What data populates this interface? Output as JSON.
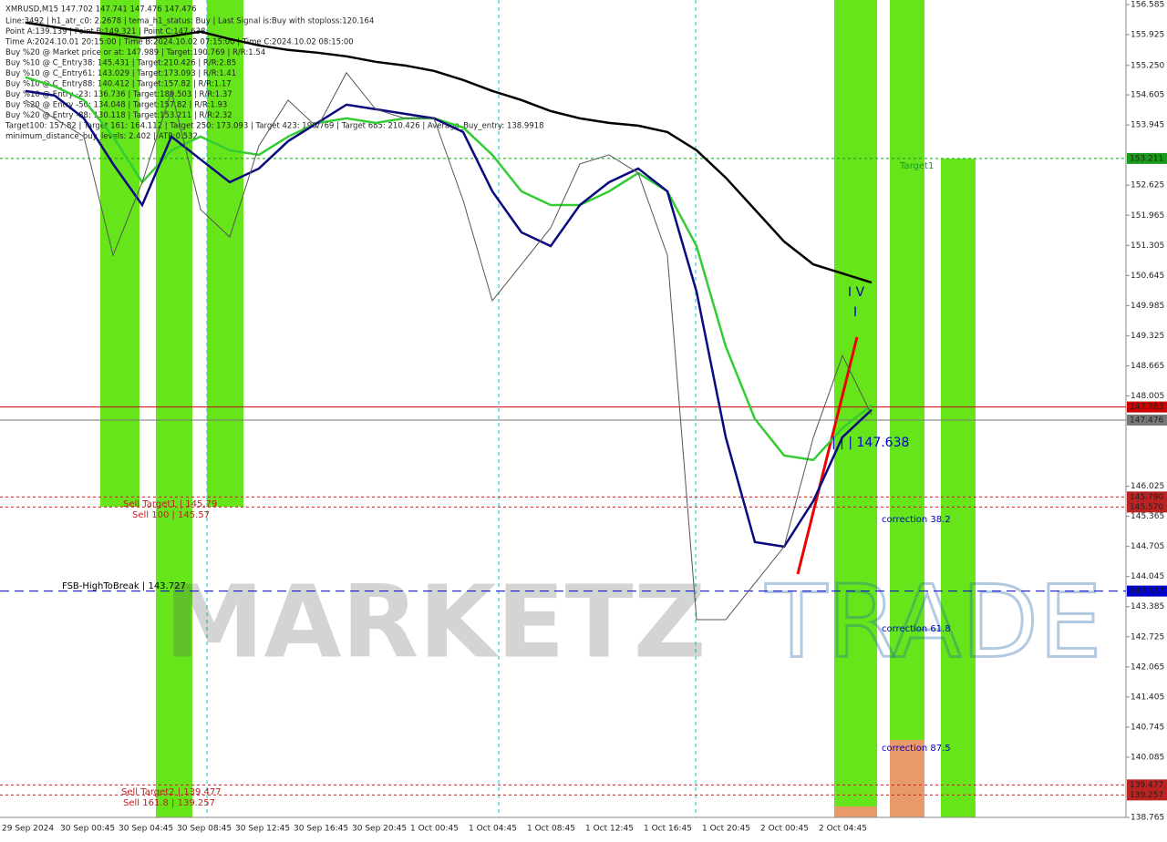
{
  "chart_data": {
    "type": "line",
    "title": "XMRUSD,M15  147.702 147.741 147.476 147.476",
    "info_lines": [
      "Line:3492 | h1_atr_c0: 2.2678 | tema_h1_status: Buy | Last Signal is:Buy with stoploss:120.164",
      "Point A:139.139 | Point B:149.321 | Point C:147.638",
      "Time A:2024.10.01 20:15:00 | Time B:2024.10.02 07:15:00 | Time C:2024.10.02 08:15:00",
      "Buy %20 @ Market price or at: 147.989 | Target:190.769 | R/R:1.54",
      "Buy %10 @ C_Entry38: 145.431 | Target:210.426 | R/R:2.85",
      "Buy %10 @ C_Entry61: 143.029 | Target:173.093 | R/R:1.41",
      "Buy %10 @ C_Entry88: 140.412 | Target:157.82 | R/R:1.17",
      "Buy %10 @ Entry -23: 136.736 | Target:189.503 | R/R:1.37",
      "Buy %20 @ Entry -50: 134.048 | Target:157.82 | R/R:1.93",
      "Buy %20 @ Entry -88: 130.118 | Target:153.211 | R/R:2.32",
      "Target100: 157.82 | Target 161: 164.112 | Target 250: 173.093 | Target 423: 190.769 | Target 685: 210.426 | Average_Buy_entry: 138.9918",
      "minimum_distance_buy_levels: 2.402 | ATR:0.532"
    ],
    "categories": [
      "29 Sep 2024",
      null,
      "30 Sep 00:45",
      null,
      "30 Sep 04:45",
      null,
      "30 Sep 08:45",
      null,
      "30 Sep 12:45",
      null,
      "30 Sep 16:45",
      null,
      "30 Sep 20:45",
      null,
      "1 Oct 00:45",
      null,
      "1 Oct 04:45",
      null,
      "1 Oct 08:45",
      null,
      "1 Oct 12:45",
      null,
      "1 Oct 16:45",
      null,
      "1 Oct 20:45",
      null,
      "2 Oct 00:45",
      null,
      "2 Oct 04:45",
      null
    ],
    "series": [
      {
        "color": "#000000",
        "width": 2.5,
        "values": [
          156.19,
          156.09,
          155.99,
          155.93,
          155.85,
          155.89,
          155.99,
          155.83,
          155.69,
          155.59,
          155.53,
          155.45,
          155.33,
          155.25,
          155.13,
          154.93,
          154.69,
          154.49,
          154.25,
          154.09,
          153.99,
          153.93,
          153.79,
          153.39,
          152.79,
          152.09,
          151.39,
          150.89,
          150.69,
          150.49
        ]
      },
      {
        "color": "#33cc33",
        "width": 2.5,
        "values": [
          154.99,
          154.79,
          154.49,
          153.69,
          152.69,
          153.39,
          153.69,
          153.39,
          153.29,
          153.69,
          153.99,
          154.09,
          153.99,
          154.09,
          154.09,
          153.89,
          153.29,
          152.49,
          152.19,
          152.19,
          152.49,
          152.89,
          152.49,
          151.29,
          149.09,
          147.5,
          146.7,
          146.6,
          147.3,
          147.8
        ]
      },
      {
        "color": "#0a0a80",
        "width": 2.5,
        "values": [
          154.69,
          154.59,
          154.09,
          153.09,
          152.19,
          153.69,
          153.19,
          152.69,
          152.99,
          153.59,
          153.99,
          154.39,
          154.29,
          154.19,
          154.09,
          153.79,
          152.49,
          151.59,
          151.29,
          152.19,
          152.69,
          152.99,
          152.49,
          150.29,
          147.1,
          144.8,
          144.7,
          145.7,
          147.1,
          147.7
        ]
      },
      {
        "color": "#555555",
        "width": 1,
        "values": [
          154.49,
          154.09,
          153.69,
          151.09,
          152.69,
          154.69,
          152.09,
          151.49,
          153.49,
          154.49,
          153.89,
          155.09,
          154.29,
          154.09,
          154.09,
          152.29,
          150.09,
          150.89,
          151.69,
          153.09,
          153.29,
          152.89,
          151.09,
          143.1,
          143.1,
          143.9,
          144.7,
          147.09,
          148.89,
          147.59
        ]
      }
    ],
    "ylim": [
      138.765,
      156.585
    ],
    "yticks": [
      156.585,
      155.925,
      {
        "value": 155.25,
        "label": "155.250"
      },
      154.605,
      153.945,
      152.625,
      151.965,
      151.305,
      150.645,
      149.985,
      149.325,
      148.665,
      148.005,
      146.025,
      145.365,
      144.705,
      144.045,
      143.385,
      142.725,
      142.065,
      141.405,
      140.745,
      140.085,
      138.765
    ],
    "levels": [
      {
        "value": 153.211,
        "color": "#1a9a1a",
        "dash": "3,3"
      },
      {
        "value": 147.763,
        "color": "#cc0000",
        "dash": "none"
      },
      {
        "value": 147.476,
        "color": "#777777",
        "dash": "none"
      },
      {
        "value": 145.79,
        "label": "145.790",
        "color": "#bb2222",
        "dash": "3,3"
      },
      {
        "value": 145.57,
        "label": "145.570",
        "color": "#bb2222",
        "dash": "3,3"
      },
      {
        "value": 143.727,
        "color": "#0000cc",
        "dash": "10,6"
      },
      {
        "value": 139.477,
        "color": "#bb2222",
        "dash": "3,3"
      },
      {
        "value": 139.257,
        "color": "#bb2222",
        "dash": "3,3"
      }
    ],
    "annotations": [
      "Sell Target1 | 145.79",
      "Sell 100 | 145.57",
      "FSB-HighToBreak | 143.727",
      "Sell Target2 | 139.477",
      "Sell 161.8 | 139.257",
      "Target1",
      "correction 38.2",
      "correction 61.8",
      "correction 87.5",
      "I V",
      "I",
      "| | | 147.638"
    ],
    "watermark": [
      "MARKETZ",
      "TRADE"
    ]
  }
}
